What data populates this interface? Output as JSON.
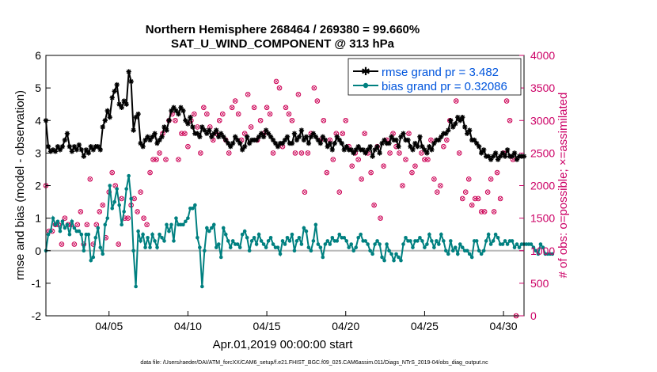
{
  "chart_data": {
    "type": "line",
    "title": "Northern Hemisphere 268464 / 269380 = 99.660%",
    "subtitle": "SAT_U_WIND_COMPONENT @ 313 hPa",
    "xlabel": "Apr.01,2019 00:00:00 start",
    "ylabel": "rmse and bias (model - observation)",
    "y2label": "# of obs: o=possible; ×=assimilated",
    "ylim": [
      -2,
      6
    ],
    "y2lim": [
      0,
      4000
    ],
    "xlim": [
      1,
      31.3
    ],
    "yticks": [
      "-2",
      "-1",
      "0",
      "1",
      "2",
      "3",
      "4",
      "5",
      "6"
    ],
    "y2ticks": [
      "0",
      "500",
      "1000",
      "1500",
      "2000",
      "2500",
      "3000",
      "3500",
      "4000"
    ],
    "xticks": [
      {
        "day": 5,
        "label": "04/05"
      },
      {
        "day": 10,
        "label": "04/10"
      },
      {
        "day": 15,
        "label": "04/15"
      },
      {
        "day": 20,
        "label": "04/20"
      },
      {
        "day": 25,
        "label": "04/25"
      },
      {
        "day": 30,
        "label": "04/30"
      }
    ],
    "legend": [
      {
        "label": "rmse grand pr = 3.482",
        "color": "#000000"
      },
      {
        "label": "bias grand pr = 0.32086",
        "color": "#008080"
      }
    ],
    "colors": {
      "rmse": "#000000",
      "bias": "#008080",
      "obs": "#cc0055",
      "label2": "#cc0066",
      "legend_text": "#0055dd",
      "zero": "#bbbbbb"
    },
    "series": [
      {
        "name": "rmse",
        "values": [
          4.0,
          3.2,
          3.05,
          3.1,
          3.05,
          3.2,
          3.1,
          3.2,
          3.4,
          3.6,
          3.2,
          3.05,
          3.2,
          3.1,
          3.25,
          3.1,
          2.9,
          3.1,
          3.0,
          3.2,
          3.1,
          3.2,
          3.2,
          3.1,
          3.8,
          4.0,
          4.3,
          4.1,
          4.7,
          4.9,
          5.1,
          4.5,
          4.4,
          4.6,
          4.5,
          5.5,
          5.2,
          3.7,
          4.1,
          4.2,
          3.3,
          3.2,
          3.4,
          3.5,
          3.4,
          3.5,
          3.6,
          3.3,
          3.4,
          3.5,
          3.8,
          3.7,
          4.0,
          4.3,
          4.4,
          4.3,
          4.2,
          4.4,
          4.3,
          4.0,
          3.9,
          4.1,
          3.8,
          3.6,
          3.6,
          3.5,
          3.8,
          3.7,
          3.6,
          3.7,
          3.5,
          3.6,
          3.7,
          3.5,
          3.6,
          3.5,
          3.4,
          3.3,
          3.2,
          3.3,
          3.5,
          3.4,
          3.3,
          3.1,
          3.2,
          3.5,
          3.3,
          3.4,
          3.4,
          3.4,
          3.5,
          3.6,
          3.5,
          3.7,
          3.6,
          3.5,
          3.4,
          3.3,
          3.2,
          3.3,
          3.3,
          3.4,
          3.5,
          3.3,
          3.3,
          3.6,
          3.4,
          3.5,
          3.7,
          3.4,
          3.5,
          3.3,
          3.5,
          3.6,
          3.5,
          3.4,
          3.3,
          3.5,
          3.4,
          3.2,
          3.3,
          3.1,
          3.3,
          3.5,
          3.4,
          3.3,
          3.1,
          3.2,
          3.1,
          3.1,
          3.0,
          3.1,
          3.2,
          3.1,
          3.1,
          3.0,
          3.1,
          3.2,
          2.9,
          3.1,
          3.2,
          3.0,
          3.3,
          3.4,
          3.3,
          3.3,
          3.5,
          3.4,
          3.4,
          3.2,
          3.5,
          3.6,
          3.4,
          3.4,
          3.2,
          3.1,
          3.3,
          3.2,
          3.5,
          3.2,
          3.1,
          3.0,
          3.2,
          3.1,
          3.3,
          3.4,
          3.4,
          3.5,
          3.6,
          3.6,
          3.7,
          4.0,
          3.8,
          3.9,
          4.1,
          4.0,
          4.1,
          3.8,
          3.6,
          3.7,
          3.4,
          3.4,
          3.3,
          3.2,
          3.0,
          3.1,
          2.9,
          2.9,
          2.8,
          2.9,
          3.0,
          2.8,
          2.9,
          3.0,
          2.9,
          3.1,
          2.9,
          2.9,
          3.0,
          2.8,
          2.9,
          2.9,
          2.9
        ]
      },
      {
        "name": "bias",
        "values": [
          0.0,
          0.5,
          0.6,
          1.0,
          0.8,
          0.9,
          0.6,
          0.9,
          0.7,
          0.8,
          0.5,
          0.9,
          0.7,
          0.6,
          0.6,
          0.5,
          0.0,
          0.5,
          0.5,
          -0.3,
          -0.2,
          0.4,
          0.7,
          0.1,
          -0.1,
          0.8,
          1.0,
          2.0,
          1.3,
          1.5,
          1.9,
          1.4,
          0.8,
          1.2,
          1.9,
          2.3,
          1.6,
          0.0,
          -1.1,
          0.6,
          0.3,
          0.5,
          0.1,
          0.4,
          0.1,
          0.5,
          0.3,
          0.1,
          0.5,
          0.4,
          0.3,
          0.8,
          0.6,
          0.8,
          0.3,
          1.0,
          0.8,
          0.8,
          0.8,
          0.9,
          1.0,
          1.3,
          1.3,
          1.4,
          0.4,
          0.1,
          -1.1,
          0.0,
          0.7,
          0.6,
          0.7,
          0.8,
          0.1,
          0.2,
          -0.2,
          0.7,
          0.5,
          0.3,
          0.1,
          0.3,
          0.2,
          0.2,
          0.1,
          0.5,
          0.6,
          0.4,
          0.0,
          0.3,
          0.4,
          0.2,
          0.5,
          0.3,
          0.2,
          0.1,
          0.3,
          0.4,
          0.2,
          0.1,
          0.1,
          -0.1,
          0.3,
          0.2,
          0.4,
          0.3,
          0.5,
          0.0,
          0.3,
          0.4,
          0.2,
          0.7,
          0.6,
          0.1,
          0.0,
          0.3,
          0.8,
          0.2,
          0.1,
          -0.2,
          0.2,
          0.3,
          0.2,
          0.4,
          0.3,
          0.3,
          0.5,
          0.4,
          0.4,
          0.3,
          0.1,
          0.2,
          0.0,
          0.1,
          0.4,
          0.5,
          0.3,
          0.3,
          0.2,
          0.0,
          -0.1,
          0.2,
          0.3,
          0.2,
          -0.2,
          -0.3,
          0.2,
          0.0,
          -0.1,
          -0.3,
          -0.1,
          -0.2,
          -0.3,
          0.2,
          0.4,
          0.3,
          0.3,
          0.1,
          0.3,
          0.3,
          0.4,
          0.3,
          0.1,
          0.2,
          0.5,
          0.3,
          0.1,
          0.3,
          0.2,
          0.5,
          0.3,
          0.0,
          -0.1,
          0.3,
          0.0,
          0.1,
          -0.1,
          0.2,
          0.1,
          0.0,
          0.0,
          -0.1,
          -0.2,
          0.3,
          0.3,
          0.0,
          -0.1,
          0.0,
          0.3,
          0.5,
          0.2,
          0.3,
          0.5,
          0.4,
          0.2,
          0.2,
          0.3,
          0.2,
          0.3,
          0.3,
          0.1,
          0.2,
          0.1,
          0.2,
          0.2,
          0.2,
          0.2,
          0.2,
          0.1,
          0.0,
          -0.1,
          0.2,
          0.1,
          -0.1,
          -0.1,
          -0.1,
          -0.1
        ]
      },
      {
        "name": "obs",
        "day": [
          1.0,
          1.2,
          1.4,
          1.6,
          1.8,
          2.0,
          2.2,
          2.4,
          2.6,
          2.8,
          3.0,
          3.2,
          3.4,
          3.6,
          3.8,
          4.0,
          4.2,
          4.4,
          4.6,
          4.8,
          5.0,
          5.2,
          5.4,
          5.6,
          5.8,
          6.0,
          6.2,
          6.4,
          6.6,
          6.8,
          7.0,
          7.2,
          7.4,
          7.6,
          7.8,
          8.0,
          8.2,
          8.4,
          8.6,
          8.8,
          9.0,
          9.2,
          9.4,
          9.6,
          9.8,
          10.0,
          10.2,
          10.4,
          10.6,
          10.8,
          11.0,
          11.2,
          11.4,
          11.6,
          11.8,
          12.0,
          12.2,
          12.4,
          12.6,
          12.8,
          13.0,
          13.2,
          13.4,
          13.6,
          13.8,
          14.0,
          14.2,
          14.4,
          14.6,
          14.8,
          15.0,
          15.2,
          15.4,
          15.6,
          15.8,
          16.0,
          16.2,
          16.4,
          16.6,
          16.8,
          17.0,
          17.2,
          17.4,
          17.6,
          17.8,
          18.0,
          18.2,
          18.4,
          18.6,
          18.8,
          19.0,
          19.2,
          19.4,
          19.6,
          19.8,
          20.0,
          20.2,
          20.4,
          20.6,
          20.8,
          21.0,
          21.2,
          21.4,
          21.6,
          21.8,
          22.0,
          22.2,
          22.4,
          22.6,
          22.8,
          23.0,
          23.2,
          23.4,
          23.6,
          23.8,
          24.0,
          24.2,
          24.4,
          24.6,
          24.8,
          25.0,
          25.2,
          25.4,
          25.6,
          25.8,
          26.0,
          26.2,
          26.4,
          26.6,
          26.8,
          27.0,
          27.2,
          27.4,
          27.6,
          27.8,
          28.0,
          28.2,
          28.4,
          28.6,
          28.8,
          29.0,
          29.2,
          29.4,
          29.6,
          29.8,
          30.0,
          30.2,
          30.4,
          30.6,
          30.8,
          31.0,
          31.2
        ],
        "values": [
          2000,
          1300,
          1300,
          1400,
          1400,
          1100,
          1500,
          1400,
          1400,
          1100,
          1400,
          1600,
          1100,
          1400,
          2100,
          1100,
          1400,
          1600,
          1700,
          1200,
          1900,
          2200,
          2000,
          1100,
          1800,
          1500,
          1500,
          1700,
          1800,
          1600,
          1900,
          1500,
          1400,
          2200,
          2400,
          2400,
          2500,
          2800,
          2400,
          3000,
          3100,
          3000,
          2400,
          2800,
          2800,
          2600,
          3000,
          3100,
          2900,
          2500,
          3200,
          3100,
          2900,
          2700,
          2800,
          3000,
          3100,
          2700,
          2500,
          3200,
          3300,
          3100,
          2700,
          2800,
          3400,
          2900,
          3200,
          2700,
          3000,
          2800,
          3200,
          3100,
          2500,
          3600,
          3500,
          2600,
          3200,
          3100,
          3000,
          2500,
          3400,
          2500,
          1900,
          2500,
          2800,
          3500,
          3300,
          2700,
          3000,
          2200,
          2700,
          2400,
          2800,
          1900,
          2800,
          3000,
          2600,
          2300,
          2500,
          2400,
          2100,
          2800,
          2500,
          2200,
          1700,
          2600,
          1500,
          2300,
          2700,
          2500,
          2800,
          2600,
          2500,
          2000,
          2400,
          2800,
          2200,
          2300,
          3500,
          2500,
          2400,
          2400,
          2700,
          2100,
          1900,
          2000,
          2600,
          2700,
          3000,
          3500,
          3300,
          2500,
          1800,
          1900,
          2100,
          1700,
          1800,
          1800,
          1600,
          1600,
          1900,
          2100,
          1600,
          2200,
          1800,
          2500,
          3300,
          3000,
          2400,
          0
        ]
      }
    ]
  },
  "footer": {
    "text": "data file: /Users/raeder/DAI/ATM_forcXX/CAM6_setup/f.e21.FHIST_BGC.f09_025.CAM6assim.011/Diags_NTrS_2019-04/obs_diag_output.nc"
  }
}
